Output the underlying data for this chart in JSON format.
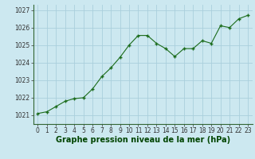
{
  "x": [
    0,
    1,
    2,
    3,
    4,
    5,
    6,
    7,
    8,
    9,
    10,
    11,
    12,
    13,
    14,
    15,
    16,
    17,
    18,
    19,
    20,
    21,
    22,
    23
  ],
  "y": [
    1021.1,
    1021.2,
    1021.5,
    1021.8,
    1021.95,
    1022.0,
    1022.5,
    1023.2,
    1023.7,
    1024.3,
    1025.0,
    1025.55,
    1025.55,
    1025.1,
    1024.8,
    1024.35,
    1024.8,
    1024.8,
    1025.25,
    1025.1,
    1026.1,
    1026.0,
    1026.5,
    1026.7
  ],
  "line_color": "#1a6b1a",
  "marker": "+",
  "marker_size": 3.5,
  "marker_lw": 1.0,
  "background_color": "#cce8f0",
  "grid_color": "#aacfdc",
  "title": "Graphe pression niveau de la mer (hPa)",
  "ylim": [
    1020.5,
    1027.3
  ],
  "yticks": [
    1021,
    1022,
    1023,
    1024,
    1025,
    1026,
    1027
  ],
  "xlim": [
    -0.5,
    23.5
  ],
  "xticks": [
    0,
    1,
    2,
    3,
    4,
    5,
    6,
    7,
    8,
    9,
    10,
    11,
    12,
    13,
    14,
    15,
    16,
    17,
    18,
    19,
    20,
    21,
    22,
    23
  ],
  "xlabel_color": "#004400",
  "tick_fontsize": 5.5,
  "title_fontsize": 7.0,
  "line_width": 0.8
}
